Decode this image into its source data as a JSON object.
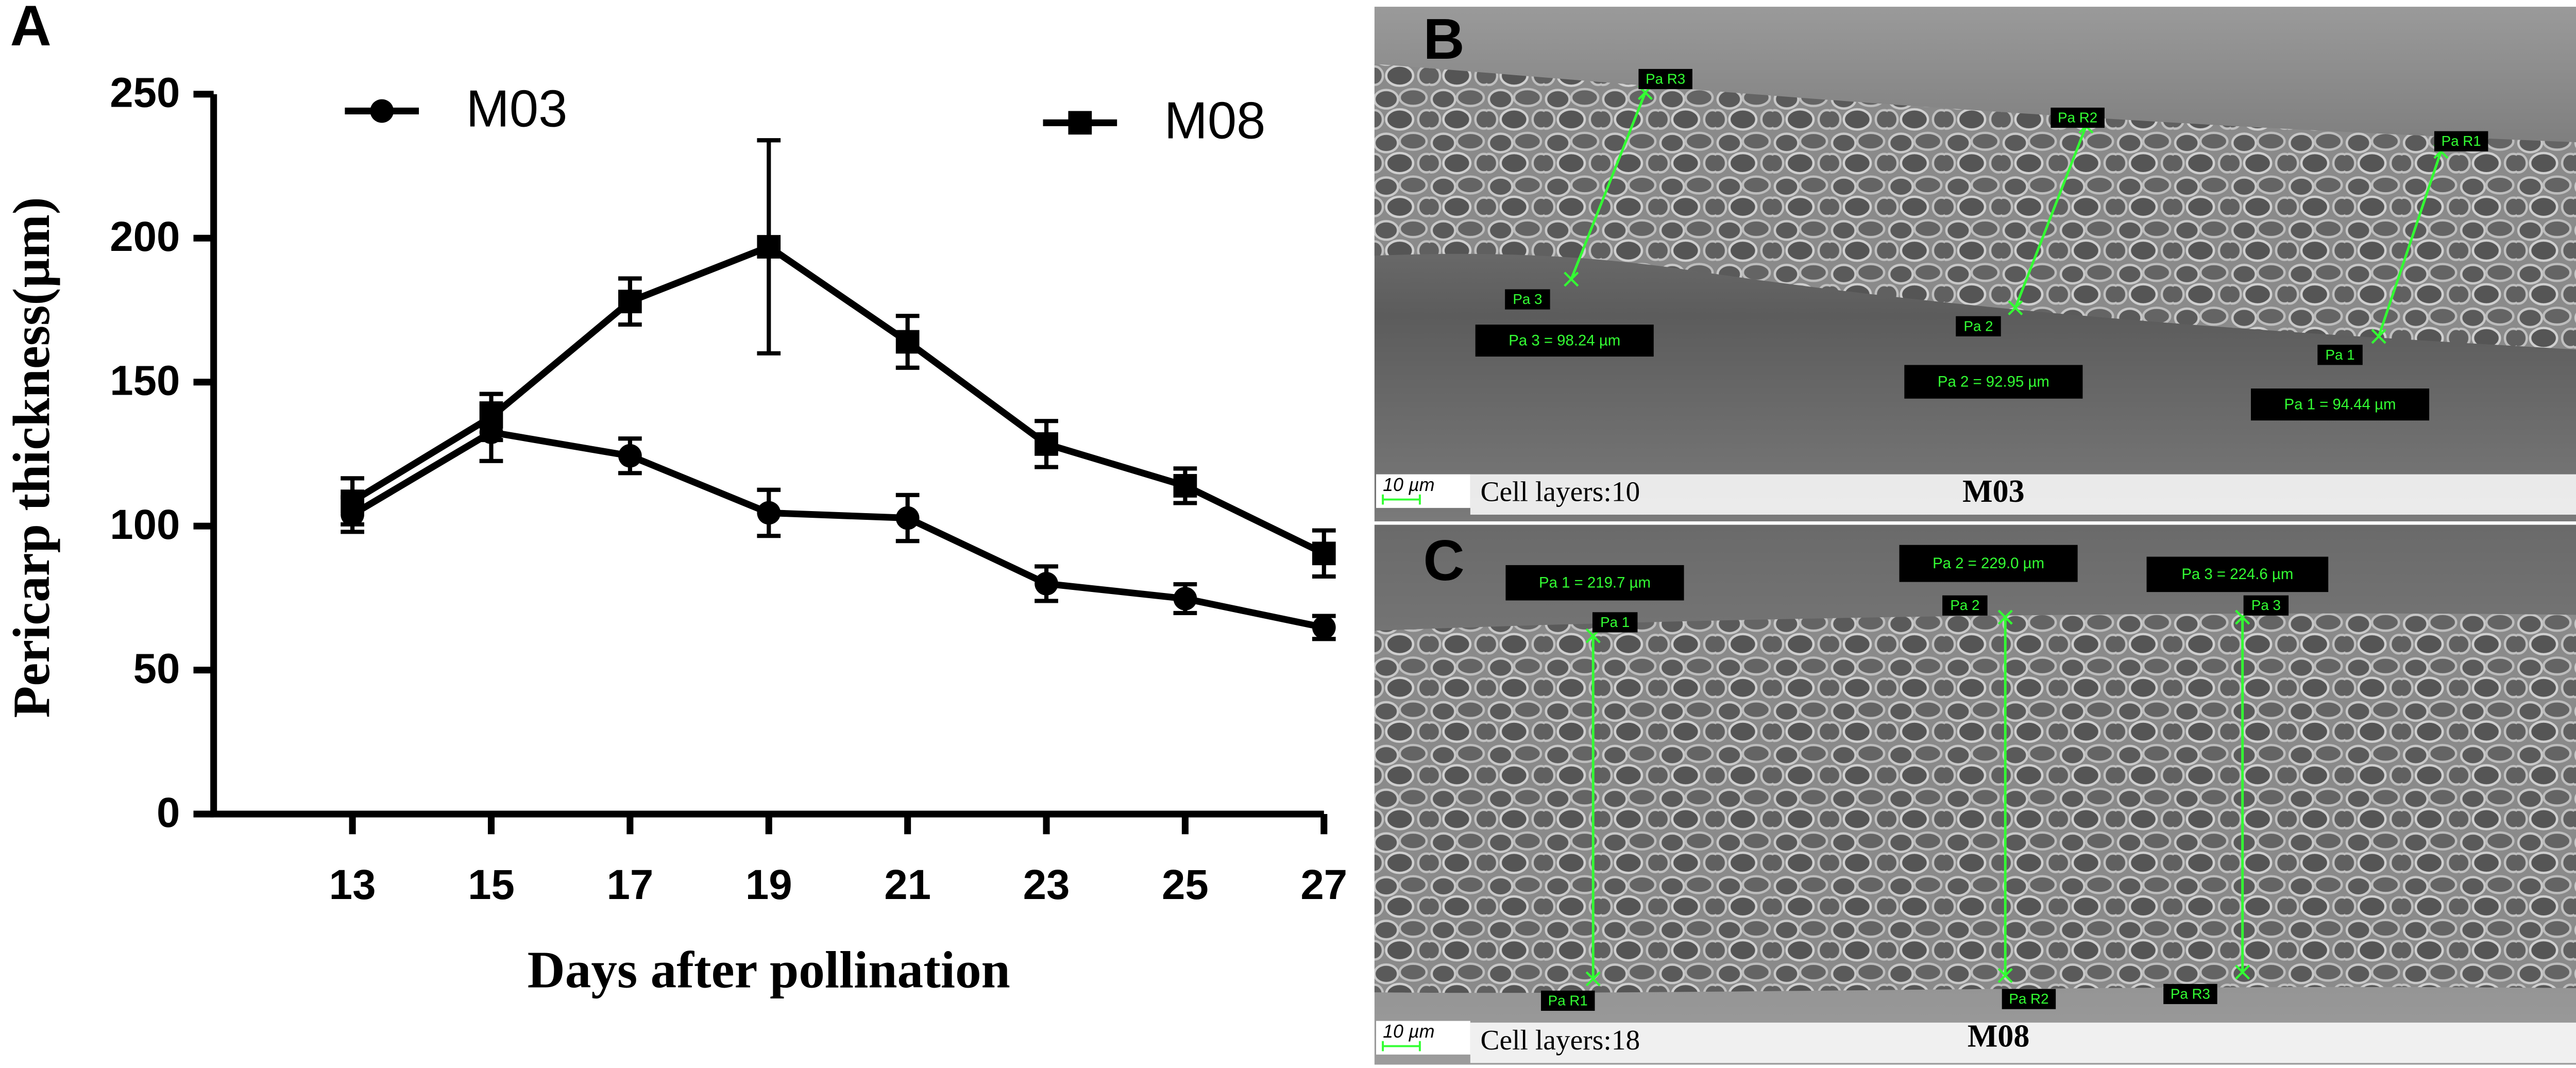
{
  "panel_label": "A",
  "chart_data": {
    "type": "line",
    "xlabel": "Days after pollination",
    "ylabel": "Pericarp thickness(µm)",
    "x": [
      13,
      15,
      17,
      19,
      21,
      23,
      25,
      27
    ],
    "xlim": [
      11,
      27
    ],
    "xticks": [
      13,
      15,
      17,
      19,
      21,
      23,
      25,
      27
    ],
    "ylim": [
      0,
      250
    ],
    "yticks": [
      0,
      50,
      100,
      150,
      200,
      250
    ],
    "grid": false,
    "series": [
      {
        "name": "M03",
        "color": "#000000",
        "marker": "circle",
        "values": [
          104,
          132.6,
          124.4,
          104.6,
          102.8,
          80,
          74.8,
          64.8
        ],
        "errors": [
          6,
          10,
          6,
          8,
          8,
          6,
          5,
          4
        ]
      },
      {
        "name": "M08",
        "color": "#000000",
        "marker": "square",
        "values": [
          108.6,
          137.9,
          178,
          197,
          164,
          128.5,
          114,
          90.5
        ],
        "errors": [
          8,
          8,
          8,
          37,
          9,
          8,
          6,
          8
        ]
      }
    ]
  },
  "micrographs": [
    {
      "label": "B",
      "scale_bar": "10 µm",
      "caption": "Cell layers:10",
      "sample": "M03",
      "measurements": [
        {
          "start": "Pa 3",
          "end": "Pa R3",
          "reading": "Pa 3 = 98.24 µm"
        },
        {
          "start": "Pa 2",
          "end": "Pa R2",
          "reading": "Pa 2 = 92.95 µm"
        },
        {
          "start": "Pa 1",
          "end": "Pa R1",
          "reading": "Pa 1 = 94.44 µm"
        }
      ]
    },
    {
      "label": "C",
      "scale_bar": "10 µm",
      "caption": "Cell layers:18",
      "sample": "M08",
      "measurements": [
        {
          "start": "Pa R1",
          "end": "Pa 1",
          "reading": "Pa 1 = 219.7 µm"
        },
        {
          "start": "Pa R2",
          "end": "Pa 2",
          "reading": "Pa 2 = 229.0 µm"
        },
        {
          "start": "Pa R3",
          "end": "Pa 3",
          "reading": "Pa 3 = 224.6 µm"
        }
      ]
    }
  ]
}
